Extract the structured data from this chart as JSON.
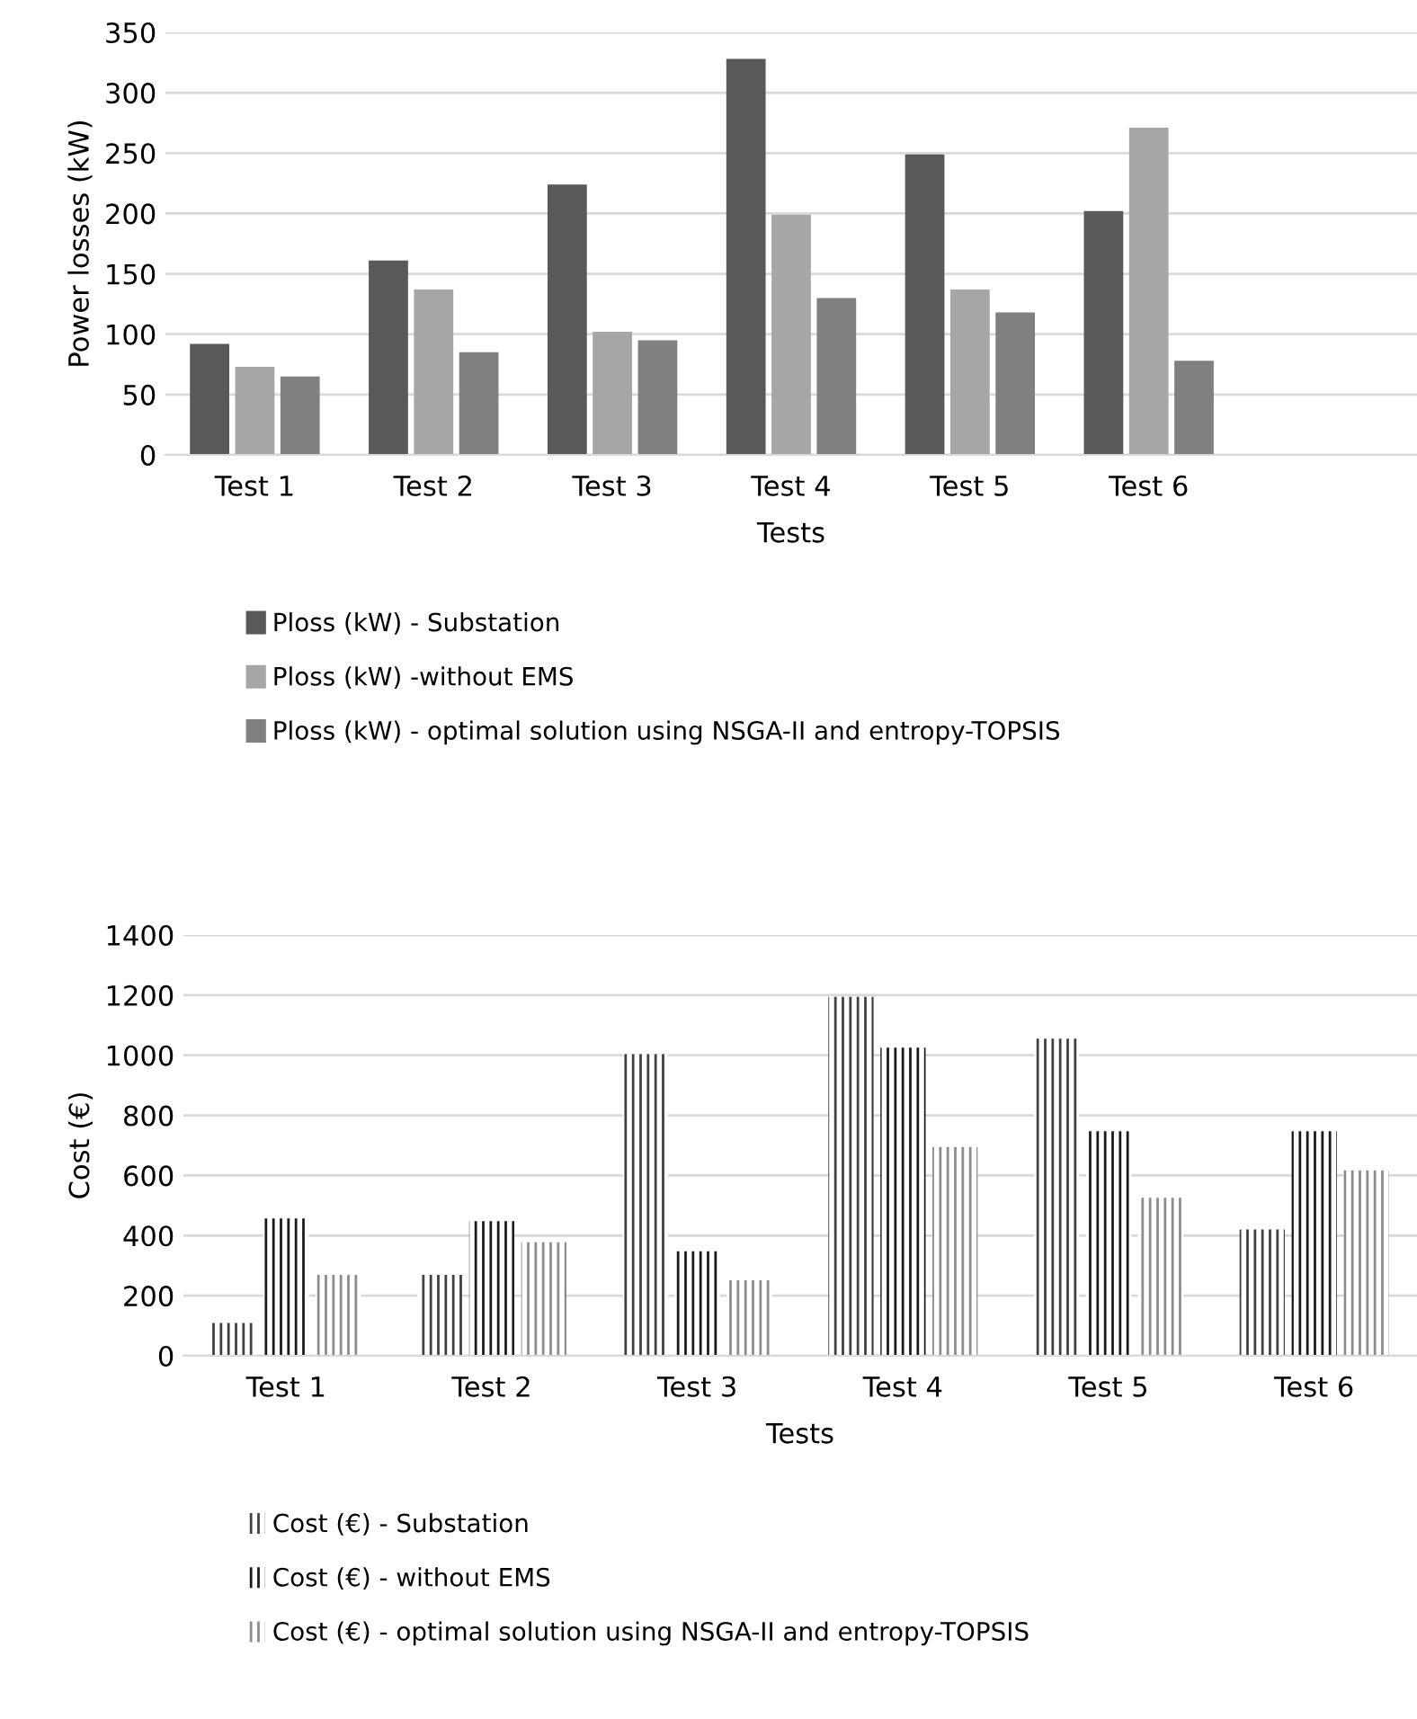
{
  "chart_data": [
    {
      "type": "bar",
      "xlabel": "Tests",
      "ylabel": "Power losses (kW)",
      "categories": [
        "Test 1",
        "Test 2",
        "Test 3",
        "Test 4",
        "Test 5",
        "Test 6",
        null
      ],
      "ylim": [
        0,
        350
      ],
      "yticks": [
        0,
        50,
        100,
        150,
        200,
        250,
        300,
        350
      ],
      "grid": "y",
      "legend": "bottom",
      "series": [
        {
          "name": "Ploss (kW) - Substation",
          "color": "#595959",
          "values": [
            92,
            161,
            224,
            328,
            249,
            202,
            null
          ]
        },
        {
          "name": "Ploss (kW) -without EMS",
          "color": "#a6a6a6",
          "values": [
            73,
            137,
            102,
            199,
            137,
            271,
            null
          ]
        },
        {
          "name": "Ploss (kW) - optimal solution using NSGA-II and entropy-TOPSIS",
          "color": "#808080",
          "values": [
            65,
            85,
            95,
            130,
            118,
            78,
            null
          ]
        }
      ]
    },
    {
      "type": "bar",
      "xlabel": "Tests",
      "ylabel": "Cost (€)",
      "categories": [
        "Test 1",
        "Test 2",
        "Test 3",
        "Test 4",
        "Test 5",
        "Test 6"
      ],
      "ylim": [
        0,
        1400
      ],
      "yticks": [
        0,
        200,
        400,
        600,
        800,
        1000,
        1200,
        1400
      ],
      "grid": "y",
      "legend": "bottom",
      "series": [
        {
          "name": "Cost (€) - Substation",
          "color": "#404040",
          "values": [
            109,
            269,
            1004,
            1194,
            1055,
            420
          ]
        },
        {
          "name": "Cost (€) - without EMS",
          "color": "#1a1a1a",
          "values": [
            457,
            448,
            348,
            1025,
            747,
            747
          ]
        },
        {
          "name": "Cost (€) - optimal solution using NSGA-II and entropy-TOPSIS",
          "color": "#8c8c8c",
          "values": [
            269,
            378,
            251,
            695,
            526,
            617
          ]
        }
      ]
    }
  ]
}
